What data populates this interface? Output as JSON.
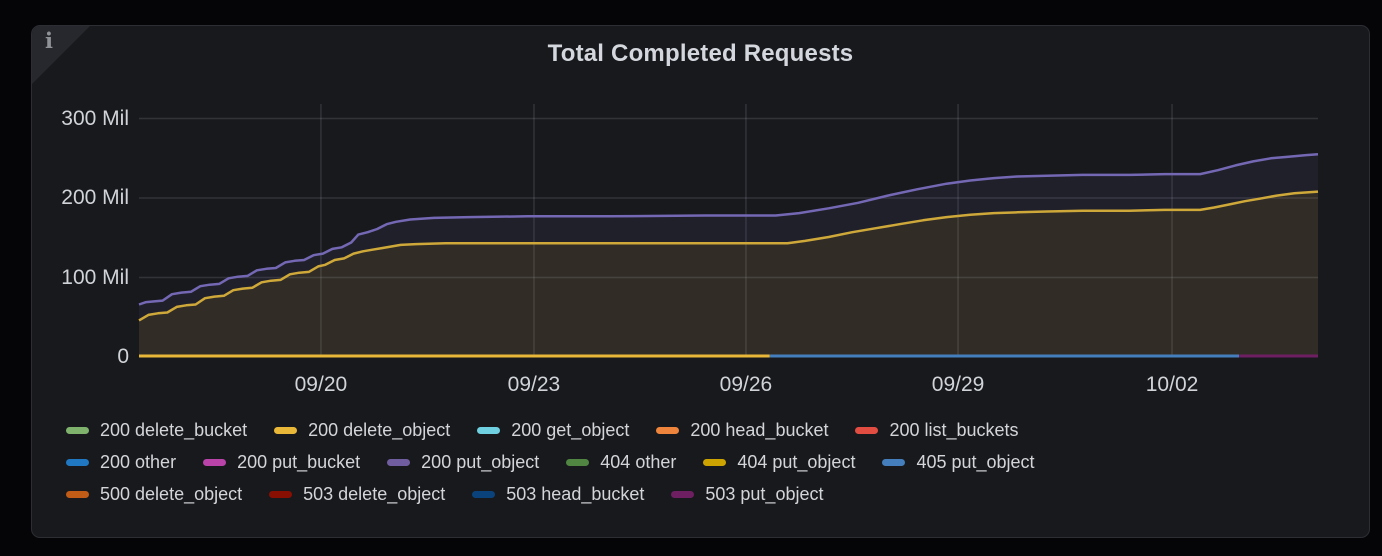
{
  "panel": {
    "title": "Total Completed Requests",
    "info_icon": "i"
  },
  "colors": {
    "page_background": "#050507",
    "panel_background": "#17191d",
    "panel_border": "#2c2e34",
    "grid": "rgba(204,204,220,0.15)",
    "axis_text": "#d0d3d8",
    "legend_text": "#d3d5d9",
    "title_text": "#d4d7dd"
  },
  "chart_data": {
    "type": "area",
    "title": "Total Completed Requests",
    "unit": "Mil (millions of requests)",
    "grid": true,
    "legend_position": "bottom",
    "ylim": [
      0,
      328
    ],
    "y_ticks": [
      {
        "value": 0,
        "label": "0"
      },
      {
        "value": 100,
        "label": "100 Mil"
      },
      {
        "value": 200,
        "label": "200 Mil"
      },
      {
        "value": 300,
        "label": "300 Mil"
      }
    ],
    "x_ticks": [
      {
        "f": 0.1543,
        "label": "09/20"
      },
      {
        "f": 0.335,
        "label": "09/23"
      },
      {
        "f": 0.5148,
        "label": "09/26"
      },
      {
        "f": 0.6947,
        "label": "09/29"
      },
      {
        "f": 0.8762,
        "label": "10/02"
      }
    ],
    "series": [
      {
        "name": "200 put_object",
        "color": "#705DA0",
        "line_color": "#7468b4",
        "fill_opacity": 0.11,
        "points": [
          [
            0,
            66
          ],
          [
            0.006,
            69
          ],
          [
            0.014,
            70
          ],
          [
            0.02,
            71
          ],
          [
            0.028,
            79
          ],
          [
            0.036,
            81
          ],
          [
            0.044,
            82
          ],
          [
            0.052,
            89
          ],
          [
            0.06,
            91
          ],
          [
            0.068,
            92
          ],
          [
            0.076,
            99
          ],
          [
            0.084,
            101
          ],
          [
            0.092,
            102
          ],
          [
            0.1,
            109
          ],
          [
            0.108,
            111
          ],
          [
            0.116,
            112
          ],
          [
            0.124,
            119
          ],
          [
            0.132,
            121
          ],
          [
            0.14,
            122
          ],
          [
            0.148,
            128
          ],
          [
            0.156,
            130
          ],
          [
            0.164,
            136
          ],
          [
            0.172,
            138
          ],
          [
            0.18,
            144
          ],
          [
            0.186,
            154
          ],
          [
            0.194,
            157
          ],
          [
            0.202,
            161
          ],
          [
            0.21,
            167
          ],
          [
            0.218,
            170
          ],
          [
            0.23,
            173
          ],
          [
            0.25,
            175
          ],
          [
            0.28,
            176
          ],
          [
            0.33,
            177
          ],
          [
            0.4,
            177
          ],
          [
            0.48,
            178
          ],
          [
            0.54,
            178
          ],
          [
            0.56,
            181
          ],
          [
            0.585,
            187
          ],
          [
            0.61,
            194
          ],
          [
            0.635,
            203
          ],
          [
            0.66,
            211
          ],
          [
            0.685,
            218
          ],
          [
            0.705,
            222
          ],
          [
            0.725,
            225
          ],
          [
            0.745,
            227
          ],
          [
            0.77,
            228
          ],
          [
            0.8,
            229
          ],
          [
            0.84,
            229
          ],
          [
            0.87,
            230
          ],
          [
            0.9,
            230
          ],
          [
            0.915,
            235
          ],
          [
            0.93,
            241
          ],
          [
            0.945,
            246
          ],
          [
            0.96,
            250
          ],
          [
            0.975,
            252
          ],
          [
            0.99,
            254
          ],
          [
            1,
            255
          ]
        ]
      },
      {
        "name": "404 put_object",
        "color": "#CCA300",
        "line_color": "#cfa83a",
        "fill_opacity": 0.1,
        "points": [
          [
            0,
            46
          ],
          [
            0.008,
            53
          ],
          [
            0.016,
            55
          ],
          [
            0.024,
            56
          ],
          [
            0.032,
            63
          ],
          [
            0.04,
            65
          ],
          [
            0.048,
            66
          ],
          [
            0.056,
            74
          ],
          [
            0.064,
            76
          ],
          [
            0.072,
            77
          ],
          [
            0.08,
            84
          ],
          [
            0.088,
            86
          ],
          [
            0.096,
            87
          ],
          [
            0.104,
            94
          ],
          [
            0.112,
            96
          ],
          [
            0.12,
            97
          ],
          [
            0.128,
            104
          ],
          [
            0.136,
            106
          ],
          [
            0.144,
            107
          ],
          [
            0.152,
            114
          ],
          [
            0.158,
            116
          ],
          [
            0.166,
            122
          ],
          [
            0.174,
            124
          ],
          [
            0.182,
            130
          ],
          [
            0.19,
            133
          ],
          [
            0.198,
            135
          ],
          [
            0.206,
            137
          ],
          [
            0.214,
            139
          ],
          [
            0.222,
            141
          ],
          [
            0.235,
            142
          ],
          [
            0.26,
            143
          ],
          [
            0.35,
            143
          ],
          [
            0.45,
            143
          ],
          [
            0.55,
            143
          ],
          [
            0.565,
            146
          ],
          [
            0.585,
            151
          ],
          [
            0.605,
            157
          ],
          [
            0.625,
            162
          ],
          [
            0.645,
            167
          ],
          [
            0.665,
            172
          ],
          [
            0.685,
            176
          ],
          [
            0.705,
            179
          ],
          [
            0.725,
            181
          ],
          [
            0.745,
            182
          ],
          [
            0.77,
            183
          ],
          [
            0.8,
            184
          ],
          [
            0.84,
            184
          ],
          [
            0.87,
            185
          ],
          [
            0.9,
            185
          ],
          [
            0.912,
            188
          ],
          [
            0.925,
            192
          ],
          [
            0.938,
            196
          ],
          [
            0.95,
            199
          ],
          [
            0.965,
            203
          ],
          [
            0.98,
            206
          ],
          [
            1,
            208
          ]
        ]
      }
    ],
    "zero_line_segments": [
      {
        "name": "200 delete_object",
        "color": "#EAB839",
        "from": 0,
        "to": 0.535,
        "value": 0
      },
      {
        "name": "405 put_object",
        "color": "#447EBC",
        "from": 0.535,
        "to": 0.933,
        "value": 0
      },
      {
        "name": "503 put_object",
        "color": "#6D1F62",
        "from": 0.933,
        "to": 1.0,
        "value": 0
      }
    ],
    "legend_rows": [
      [
        {
          "label": "200 delete_bucket",
          "color": "#7EB26D"
        },
        {
          "label": "200 delete_object",
          "color": "#EAB839"
        },
        {
          "label": "200 get_object",
          "color": "#6ED0E0"
        },
        {
          "label": "200 head_bucket",
          "color": "#EF843C"
        },
        {
          "label": "200 list_buckets",
          "color": "#E24D42"
        }
      ],
      [
        {
          "label": "200 other",
          "color": "#1F78C1"
        },
        {
          "label": "200 put_bucket",
          "color": "#BA43A9"
        },
        {
          "label": "200 put_object",
          "color": "#705DA0"
        },
        {
          "label": "404 other",
          "color": "#508642"
        },
        {
          "label": "404 put_object",
          "color": "#CCA300"
        },
        {
          "label": "405 put_object",
          "color": "#447EBC"
        }
      ],
      [
        {
          "label": "500 delete_object",
          "color": "#C15C17"
        },
        {
          "label": "503 delete_object",
          "color": "#890F02"
        },
        {
          "label": "503 head_bucket",
          "color": "#0A437C"
        },
        {
          "label": "503 put_object",
          "color": "#6D1F62"
        }
      ]
    ]
  }
}
